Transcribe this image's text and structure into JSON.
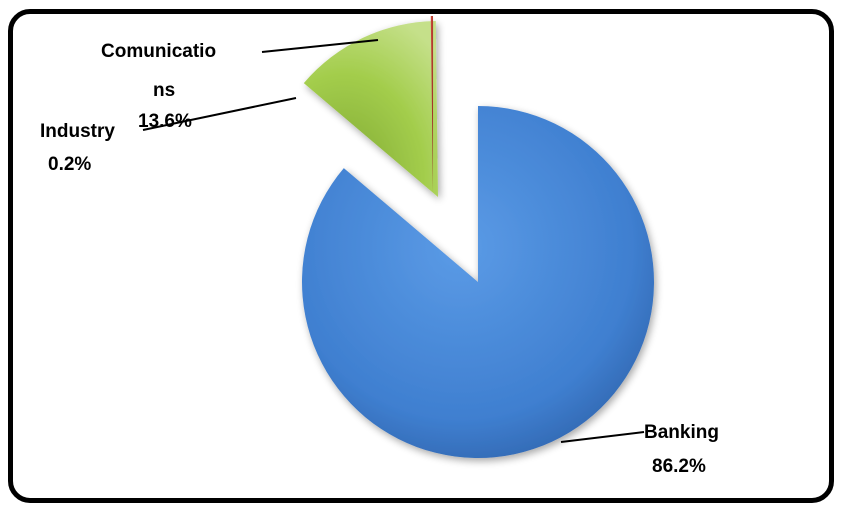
{
  "chart_data": {
    "type": "pie",
    "exploded": true,
    "slices": [
      {
        "label": "Banking",
        "value": 86.2,
        "value_label": "86.2%",
        "color": "#3f7fd0"
      },
      {
        "label": "Comunications",
        "label_lines": [
          "Comunicatio",
          "ns"
        ],
        "value": 13.6,
        "value_label": "13.6%",
        "color": "#9bc53d"
      },
      {
        "label": "Industry",
        "value": 0.2,
        "value_label": "0.2%",
        "color": "#c0392b"
      }
    ]
  }
}
